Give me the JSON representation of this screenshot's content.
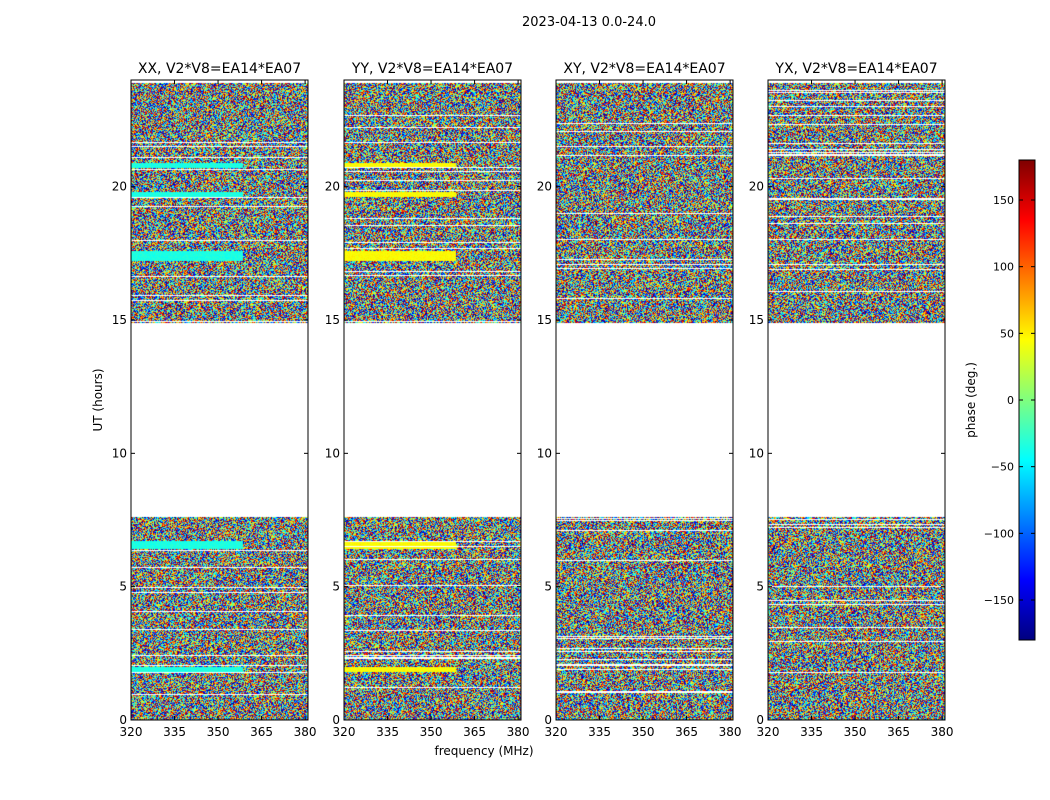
{
  "figure": {
    "suptitle": "2023-04-13 0.0-24.0",
    "shared_xlabel": "frequency (MHz)",
    "shared_ylabel": "UT (hours)"
  },
  "colorbar": {
    "label": "phase (deg.)",
    "range": [
      -180,
      180
    ],
    "ticks": [
      -150,
      -100,
      -50,
      0,
      50,
      100,
      150
    ],
    "tick_labels": [
      "−150",
      "−100",
      "−50",
      "0",
      "50",
      "100",
      "150"
    ],
    "colormap": "jet",
    "colormap_stops": [
      "#00007f",
      "#0000ff",
      "#007fff",
      "#00ffff",
      "#7fff7f",
      "#ffff00",
      "#ff7f00",
      "#ff0000",
      "#7f0000"
    ]
  },
  "chart_data": [
    {
      "type": "heatmap",
      "title": "XX, V2*V8=EA14*EA07",
      "xlabel": "",
      "ylabel": "UT (hours)",
      "xlim": [
        320,
        381
      ],
      "ylim": [
        0,
        24
      ],
      "xticks": [
        320,
        335,
        350,
        365,
        380
      ],
      "yticks": [
        0,
        5,
        10,
        15,
        20
      ],
      "ytick_labels": [
        "0",
        "5",
        "10",
        "15",
        "20"
      ],
      "value": "phase (deg.)",
      "data_intervals_hours": [
        [
          0.0,
          7.6
        ],
        [
          14.9,
          23.9
        ]
      ],
      "flagged_interval_hours": [
        7.6,
        14.9
      ],
      "bright_bands_hours": [
        [
          1.8,
          2.0
        ],
        [
          6.4,
          6.7
        ],
        [
          17.2,
          17.6
        ],
        [
          19.6,
          19.8
        ],
        [
          20.7,
          20.9
        ]
      ],
      "bright_band_phase_deg": -35
    },
    {
      "type": "heatmap",
      "title": "YY, V2*V8=EA14*EA07",
      "xlabel": "frequency (MHz)",
      "ylabel": "",
      "xlim": [
        320,
        381
      ],
      "ylim": [
        0,
        24
      ],
      "xticks": [
        320,
        335,
        350,
        365,
        380
      ],
      "yticks": [
        0,
        5,
        10,
        15,
        20
      ],
      "ytick_labels": [
        "0",
        "5",
        "10",
        "15",
        "20"
      ],
      "value": "phase (deg.)",
      "data_intervals_hours": [
        [
          0.0,
          7.6
        ],
        [
          14.9,
          23.9
        ]
      ],
      "flagged_interval_hours": [
        7.6,
        14.9
      ],
      "bright_bands_hours": [
        [
          1.8,
          2.0
        ],
        [
          6.4,
          6.7
        ],
        [
          17.2,
          17.6
        ],
        [
          19.6,
          19.8
        ],
        [
          20.7,
          20.9
        ]
      ],
      "bright_band_phase_deg": 45
    },
    {
      "type": "heatmap",
      "title": "XY, V2*V8=EA14*EA07",
      "xlabel": "",
      "ylabel": "",
      "xlim": [
        320,
        381
      ],
      "ylim": [
        0,
        24
      ],
      "xticks": [
        320,
        335,
        350,
        365,
        380
      ],
      "yticks": [
        0,
        5,
        10,
        15,
        20
      ],
      "ytick_labels": [
        "0",
        "5",
        "10",
        "15",
        "20"
      ],
      "value": "phase (deg.)",
      "data_intervals_hours": [
        [
          0.0,
          7.6
        ],
        [
          14.9,
          23.9
        ]
      ],
      "flagged_interval_hours": [
        7.6,
        14.9
      ],
      "bright_bands_hours": [],
      "bright_band_phase_deg": 0
    },
    {
      "type": "heatmap",
      "title": "YX, V2*V8=EA14*EA07",
      "xlabel": "",
      "ylabel": "",
      "xlim": [
        320,
        381
      ],
      "ylim": [
        0,
        24
      ],
      "xticks": [
        320,
        335,
        350,
        365,
        380
      ],
      "yticks": [
        0,
        5,
        10,
        15,
        20
      ],
      "ytick_labels": [
        "0",
        "5",
        "10",
        "15",
        "20"
      ],
      "value": "phase (deg.)",
      "data_intervals_hours": [
        [
          0.0,
          7.6
        ],
        [
          14.9,
          23.9
        ]
      ],
      "flagged_interval_hours": [
        7.6,
        14.9
      ],
      "bright_bands_hours": [],
      "bright_band_phase_deg": 0
    }
  ]
}
